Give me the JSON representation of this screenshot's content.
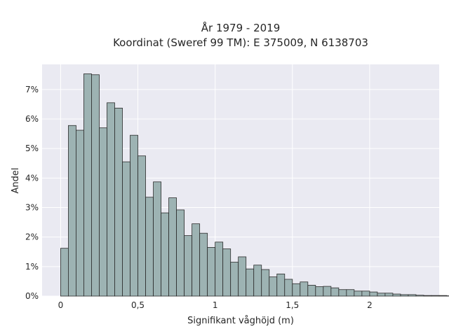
{
  "chart_data": {
    "type": "bar",
    "title_line1": "År 1979 - 2019",
    "title_line2": "Koordinat (Sweref 99 TM): E 375009, N 6138703",
    "xlabel": "Signifikant våghöjd (m)",
    "ylabel": "Andel",
    "bin_width": 0.05,
    "bin_start": 0.0,
    "xlim": [
      -0.12,
      2.45
    ],
    "ylim": [
      0,
      7.85
    ],
    "grid": true,
    "x_ticks": [
      0,
      0.5,
      1,
      1.5,
      2
    ],
    "x_tick_labels": [
      "0",
      "0,5",
      "1",
      "1,5",
      "2"
    ],
    "y_ticks": [
      0,
      1,
      2,
      3,
      4,
      5,
      6,
      7
    ],
    "y_tick_labels": [
      "0%",
      "1%",
      "2%",
      "3%",
      "4%",
      "5%",
      "6%",
      "7%"
    ],
    "values": [
      1.62,
      5.78,
      5.62,
      7.53,
      7.5,
      5.7,
      6.55,
      6.37,
      4.55,
      5.45,
      4.75,
      3.35,
      3.87,
      2.82,
      3.33,
      2.92,
      2.05,
      2.45,
      2.13,
      1.65,
      1.83,
      1.6,
      1.15,
      1.33,
      0.92,
      1.05,
      0.9,
      0.65,
      0.75,
      0.57,
      0.42,
      0.48,
      0.37,
      0.32,
      0.33,
      0.28,
      0.22,
      0.22,
      0.17,
      0.17,
      0.14,
      0.1,
      0.1,
      0.07,
      0.05,
      0.05,
      0.03,
      0.02,
      0.02,
      0.02,
      0.01,
      0.01
    ],
    "colors": {
      "bar_fill": "#9db3b3",
      "bar_edge": "#2b2b2b",
      "plot_bg": "#eaeaf2",
      "grid": "#ffffff",
      "text": "#262626"
    }
  }
}
